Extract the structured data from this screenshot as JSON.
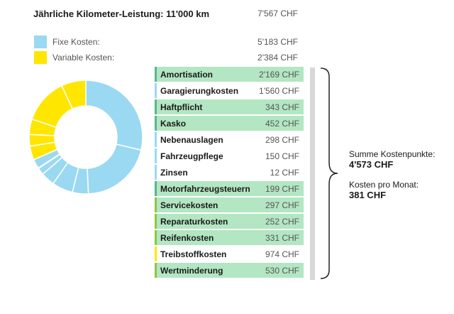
{
  "header": {
    "title": "Jährliche Kilometer-Leistung: 11'000 km",
    "total": "7'567 CHF"
  },
  "legend": [
    {
      "label": "Fixe Kosten:",
      "value": "5'183 CHF",
      "color": "#9ad9f1"
    },
    {
      "label": "Variable Kosten:",
      "value": "2'384 CHF",
      "color": "#ffe600"
    }
  ],
  "colors": {
    "fixed_bar": "#9ad9f1",
    "variable_bar": "#ffe600",
    "highlight": "#b3e6c2",
    "highlight_bar": "#54b98e",
    "highlight_bar_variable": "#8fc640"
  },
  "items": [
    {
      "name": "Amortisation",
      "value": "2'169 CHF",
      "amount": 2169,
      "kind": "fixed",
      "highlighted": true
    },
    {
      "name": "Garagierungkosten",
      "value": "1'560 CHF",
      "amount": 1560,
      "kind": "fixed",
      "highlighted": false
    },
    {
      "name": "Haftpflicht",
      "value": "343 CHF",
      "amount": 343,
      "kind": "fixed",
      "highlighted": true
    },
    {
      "name": "Kasko",
      "value": "452 CHF",
      "amount": 452,
      "kind": "fixed",
      "highlighted": true
    },
    {
      "name": "Nebenauslagen",
      "value": "298 CHF",
      "amount": 298,
      "kind": "fixed",
      "highlighted": false
    },
    {
      "name": "Fahrzeugpflege",
      "value": "150 CHF",
      "amount": 150,
      "kind": "fixed",
      "highlighted": false
    },
    {
      "name": "Zinsen",
      "value": "12 CHF",
      "amount": 12,
      "kind": "fixed",
      "highlighted": false
    },
    {
      "name": "Motorfahrzeugsteuern",
      "value": "199 CHF",
      "amount": 199,
      "kind": "fixed",
      "highlighted": true
    },
    {
      "name": "Servicekosten",
      "value": "297 CHF",
      "amount": 297,
      "kind": "variable",
      "highlighted": true
    },
    {
      "name": "Reparaturkosten",
      "value": "252 CHF",
      "amount": 252,
      "kind": "variable",
      "highlighted": true
    },
    {
      "name": "Reifenkosten",
      "value": "331 CHF",
      "amount": 331,
      "kind": "variable",
      "highlighted": true
    },
    {
      "name": "Treibstoffkosten",
      "value": "974 CHF",
      "amount": 974,
      "kind": "variable",
      "highlighted": false
    },
    {
      "name": "Wertminderung",
      "value": "530 CHF",
      "amount": 530,
      "kind": "variable",
      "highlighted": true
    }
  ],
  "summary": {
    "sum_label": "Summe Kostenpunkte:",
    "sum_value": "4'573 CHF",
    "month_label": "Kosten pro Monat:",
    "month_value": "381 CHF"
  }
}
